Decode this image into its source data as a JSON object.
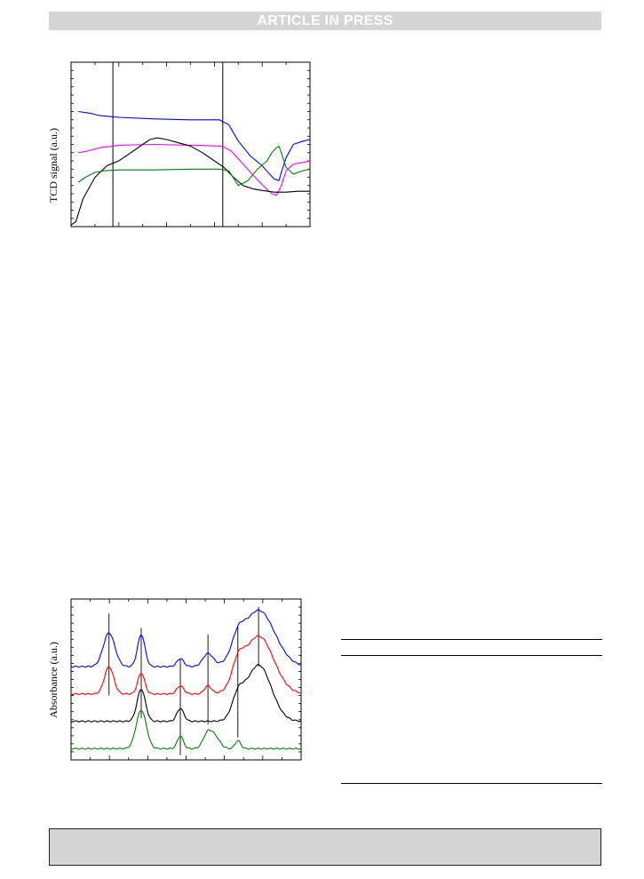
{
  "header": {
    "banner_text": "ARTICLE IN PRESS"
  },
  "colors": {
    "banner_bg": "#d4d4d4",
    "footer_bg": "#d4d4d4"
  },
  "chart_data": [
    {
      "type": "line",
      "ylabel": "TCD signal (a.u.)",
      "xlabel": "",
      "title": "",
      "x_range": [
        0,
        100
      ],
      "y_range": [
        0,
        100
      ],
      "vlines_x": [
        17.5,
        63.5
      ],
      "series": [
        {
          "color": "#0000ff",
          "points": [
            [
              3,
              30
            ],
            [
              8,
              31
            ],
            [
              12,
              32.5
            ],
            [
              20,
              33.5
            ],
            [
              35,
              34.5
            ],
            [
              50,
              35
            ],
            [
              62,
              35
            ],
            [
              66,
              38
            ],
            [
              70,
              48
            ],
            [
              75,
              57
            ],
            [
              80,
              63
            ],
            [
              83,
              68
            ],
            [
              85,
              71
            ],
            [
              87,
              72
            ],
            [
              88,
              67
            ],
            [
              90,
              58
            ],
            [
              93,
              50
            ],
            [
              97,
              48
            ],
            [
              100,
              47
            ]
          ]
        },
        {
          "color": "#ff00ff",
          "points": [
            [
              3,
              55
            ],
            [
              7,
              54
            ],
            [
              12,
              52
            ],
            [
              20,
              50.5
            ],
            [
              35,
              50
            ],
            [
              50,
              50.5
            ],
            [
              63,
              51
            ],
            [
              67,
              54
            ],
            [
              72,
              62
            ],
            [
              77,
              70
            ],
            [
              81,
              76
            ],
            [
              84,
              80
            ],
            [
              86,
              81
            ],
            [
              88,
              75
            ],
            [
              90,
              66
            ],
            [
              93,
              62
            ],
            [
              97,
              61
            ],
            [
              100,
              60
            ]
          ]
        },
        {
          "color": "#000000",
          "points": [
            [
              0,
              99
            ],
            [
              2,
              97
            ],
            [
              5,
              83
            ],
            [
              10,
              70
            ],
            [
              15,
              63
            ],
            [
              20,
              60
            ],
            [
              25,
              55
            ],
            [
              30,
              50
            ],
            [
              33,
              47
            ],
            [
              36,
              46
            ],
            [
              40,
              47
            ],
            [
              45,
              49
            ],
            [
              50,
              51
            ],
            [
              55,
              55
            ],
            [
              60,
              60
            ],
            [
              64,
              64
            ],
            [
              68,
              70
            ],
            [
              72,
              75
            ],
            [
              76,
              77
            ],
            [
              80,
              78
            ],
            [
              85,
              79
            ],
            [
              90,
              79
            ],
            [
              95,
              78.5
            ],
            [
              100,
              78.5
            ]
          ]
        },
        {
          "color": "#008000",
          "points": [
            [
              3,
              73
            ],
            [
              6,
              70
            ],
            [
              10,
              67
            ],
            [
              14,
              66
            ],
            [
              20,
              65.5
            ],
            [
              35,
              65.5
            ],
            [
              50,
              65
            ],
            [
              62,
              65
            ],
            [
              66,
              66
            ],
            [
              70,
              75
            ],
            [
              74,
              72
            ],
            [
              78,
              65
            ],
            [
              82,
              60
            ],
            [
              84,
              55
            ],
            [
              86,
              52
            ],
            [
              87,
              51
            ],
            [
              88,
              55
            ],
            [
              90,
              64
            ],
            [
              93,
              68
            ],
            [
              97,
              66
            ],
            [
              100,
              65
            ]
          ]
        }
      ]
    },
    {
      "type": "line",
      "ylabel": "Absorbance (a.u.)",
      "xlabel": "",
      "title": "",
      "x_range": [
        0,
        100
      ],
      "y_range": [
        0,
        100
      ],
      "vlines": [
        [
          16.5,
          9,
          60
        ],
        [
          30.5,
          18,
          74
        ],
        [
          47.5,
          37,
          97
        ],
        [
          59.5,
          22,
          78
        ],
        [
          72.5,
          17,
          86
        ],
        [
          81.5,
          5,
          42
        ]
      ],
      "series": [
        {
          "color": "#0000ff",
          "baseline": 42,
          "peaks": [
            [
              16.5,
              21,
              2.5
            ],
            [
              30.5,
              20,
              1.6
            ],
            [
              47.5,
              5,
              1.5
            ],
            [
              59.5,
              8,
              2.2
            ],
            [
              72.5,
              10,
              2.5
            ],
            [
              81.5,
              35,
              7
            ]
          ]
        },
        {
          "color": "#ff0000",
          "baseline": 59,
          "peaks": [
            [
              16.5,
              17,
              2
            ],
            [
              30.5,
              13,
              1.5
            ],
            [
              47.5,
              5,
              1.5
            ],
            [
              59.5,
              5,
              1.5
            ],
            [
              72.5,
              12,
              2.5
            ],
            [
              81.5,
              36,
              6.5
            ]
          ]
        },
        {
          "color": "#000000",
          "baseline": 76,
          "peaks": [
            [
              30.5,
              20,
              1.8
            ],
            [
              47.5,
              8,
              1.5
            ],
            [
              72.5,
              12,
              2.5
            ],
            [
              81.5,
              35,
              5.5
            ]
          ]
        },
        {
          "color": "#008000",
          "baseline": 93,
          "peaks": [
            [
              30.5,
              24,
              2.2
            ],
            [
              47.5,
              8,
              1.3
            ],
            [
              59.5,
              10,
              2
            ],
            [
              63,
              6,
              2
            ],
            [
              72.5,
              5,
              1.2
            ]
          ]
        }
      ]
    }
  ]
}
